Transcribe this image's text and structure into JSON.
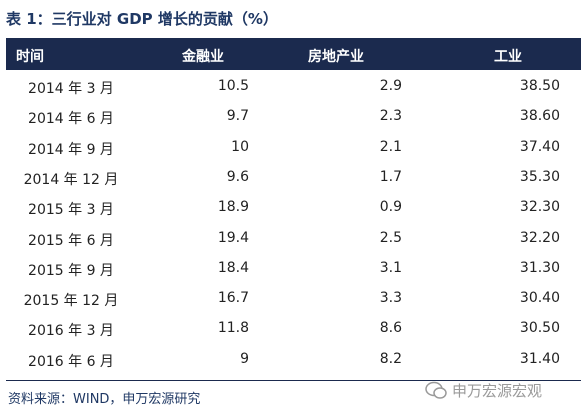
{
  "header": {
    "title": "表 1：三行业对 GDP 增长的贡献（%）"
  },
  "table": {
    "columns": [
      "时间",
      "金融业",
      "房地产业",
      "工业"
    ],
    "rows": [
      [
        "2014 年 3 月",
        "10.5",
        "2.9",
        "38.50"
      ],
      [
        "2014 年 6 月",
        "9.7",
        "2.3",
        "38.60"
      ],
      [
        "2014 年 9 月",
        "10",
        "2.1",
        "37.40"
      ],
      [
        "2014 年 12 月",
        "9.6",
        "1.7",
        "35.30"
      ],
      [
        "2015 年 3 月",
        "18.9",
        "0.9",
        "32.30"
      ],
      [
        "2015 年 6 月",
        "19.4",
        "2.5",
        "32.20"
      ],
      [
        "2015 年 9 月",
        "18.4",
        "3.1",
        "31.30"
      ],
      [
        "2015 年 12 月",
        "16.7",
        "3.3",
        "30.40"
      ],
      [
        "2016 年 3 月",
        "11.8",
        "8.6",
        "30.50"
      ],
      [
        "2016 年 6 月",
        "9",
        "8.2",
        "31.40"
      ]
    ]
  },
  "footer": {
    "source": "资料来源：WIND，申万宏源研究",
    "watermark": "申万宏源宏观"
  }
}
